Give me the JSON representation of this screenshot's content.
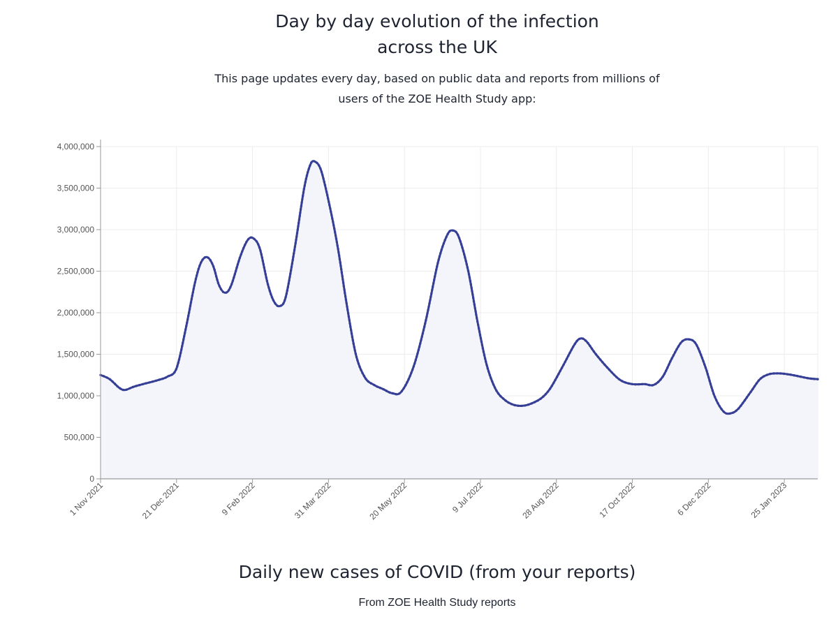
{
  "header": {
    "title_line1": "Day by day evolution of the infection",
    "title_line2": "across the UK",
    "subtitle_line1": "This page updates every day, based on public data and reports from millions of",
    "subtitle_line2": "users of the ZOE Health Study app:"
  },
  "footer": {
    "section_title": "Daily new cases of COVID (from your reports)",
    "section_subtitle": "From ZOE Health Study reports"
  },
  "colors": {
    "line": "#363f96",
    "fill": "#f4f5fb",
    "grid": "#ececec",
    "axis": "#9a9a9a"
  },
  "chart_data": {
    "type": "area",
    "title": "",
    "xlabel": "",
    "ylabel": "",
    "ylim": [
      0,
      4000000
    ],
    "xlim_days": [
      0,
      472
    ],
    "grid": true,
    "y_ticks": [
      {
        "value": 0,
        "label": "0"
      },
      {
        "value": 500000,
        "label": "500,000"
      },
      {
        "value": 1000000,
        "label": "1,000,000"
      },
      {
        "value": 1500000,
        "label": "1,500,000"
      },
      {
        "value": 2000000,
        "label": "2,000,000"
      },
      {
        "value": 2500000,
        "label": "2,500,000"
      },
      {
        "value": 3000000,
        "label": "3,000,000"
      },
      {
        "value": 3500000,
        "label": "3,500,000"
      },
      {
        "value": 4000000,
        "label": "4,000,000"
      }
    ],
    "x_ticks": [
      {
        "day": 0,
        "label": "1 Nov 2021"
      },
      {
        "day": 50,
        "label": "21 Dec 2021"
      },
      {
        "day": 100,
        "label": "9 Feb 2022"
      },
      {
        "day": 150,
        "label": "31 Mar 2022"
      },
      {
        "day": 200,
        "label": "20 May 2022"
      },
      {
        "day": 250,
        "label": "9 Jul 2022"
      },
      {
        "day": 300,
        "label": "28 Aug 2022"
      },
      {
        "day": 350,
        "label": "17 Oct 2022"
      },
      {
        "day": 400,
        "label": "6 Dec 2022"
      },
      {
        "day": 450,
        "label": "25 Jan 2023"
      }
    ],
    "series": [
      {
        "name": "Daily new cases",
        "points": [
          [
            0,
            1250000
          ],
          [
            6,
            1200000
          ],
          [
            12,
            1100000
          ],
          [
            16,
            1070000
          ],
          [
            22,
            1110000
          ],
          [
            30,
            1150000
          ],
          [
            38,
            1190000
          ],
          [
            44,
            1230000
          ],
          [
            50,
            1330000
          ],
          [
            56,
            1800000
          ],
          [
            62,
            2350000
          ],
          [
            66,
            2600000
          ],
          [
            70,
            2670000
          ],
          [
            74,
            2570000
          ],
          [
            78,
            2330000
          ],
          [
            82,
            2240000
          ],
          [
            86,
            2330000
          ],
          [
            92,
            2680000
          ],
          [
            97,
            2880000
          ],
          [
            101,
            2890000
          ],
          [
            105,
            2760000
          ],
          [
            110,
            2350000
          ],
          [
            114,
            2140000
          ],
          [
            118,
            2080000
          ],
          [
            122,
            2200000
          ],
          [
            128,
            2800000
          ],
          [
            134,
            3500000
          ],
          [
            138,
            3780000
          ],
          [
            141,
            3820000
          ],
          [
            145,
            3720000
          ],
          [
            150,
            3350000
          ],
          [
            156,
            2800000
          ],
          [
            162,
            2100000
          ],
          [
            168,
            1500000
          ],
          [
            174,
            1220000
          ],
          [
            180,
            1130000
          ],
          [
            186,
            1080000
          ],
          [
            192,
            1030000
          ],
          [
            198,
            1050000
          ],
          [
            206,
            1350000
          ],
          [
            214,
            1900000
          ],
          [
            222,
            2600000
          ],
          [
            228,
            2930000
          ],
          [
            232,
            2990000
          ],
          [
            236,
            2900000
          ],
          [
            242,
            2500000
          ],
          [
            248,
            1900000
          ],
          [
            254,
            1380000
          ],
          [
            260,
            1080000
          ],
          [
            266,
            950000
          ],
          [
            272,
            890000
          ],
          [
            278,
            880000
          ],
          [
            284,
            910000
          ],
          [
            290,
            970000
          ],
          [
            296,
            1090000
          ],
          [
            304,
            1350000
          ],
          [
            312,
            1620000
          ],
          [
            316,
            1690000
          ],
          [
            320,
            1650000
          ],
          [
            326,
            1500000
          ],
          [
            334,
            1330000
          ],
          [
            342,
            1190000
          ],
          [
            350,
            1140000
          ],
          [
            358,
            1140000
          ],
          [
            364,
            1130000
          ],
          [
            370,
            1230000
          ],
          [
            376,
            1450000
          ],
          [
            382,
            1640000
          ],
          [
            387,
            1680000
          ],
          [
            392,
            1620000
          ],
          [
            398,
            1350000
          ],
          [
            404,
            1000000
          ],
          [
            410,
            810000
          ],
          [
            415,
            790000
          ],
          [
            420,
            850000
          ],
          [
            428,
            1050000
          ],
          [
            434,
            1200000
          ],
          [
            440,
            1260000
          ],
          [
            446,
            1270000
          ],
          [
            452,
            1260000
          ],
          [
            458,
            1240000
          ],
          [
            466,
            1210000
          ],
          [
            472,
            1200000
          ]
        ]
      }
    ]
  }
}
